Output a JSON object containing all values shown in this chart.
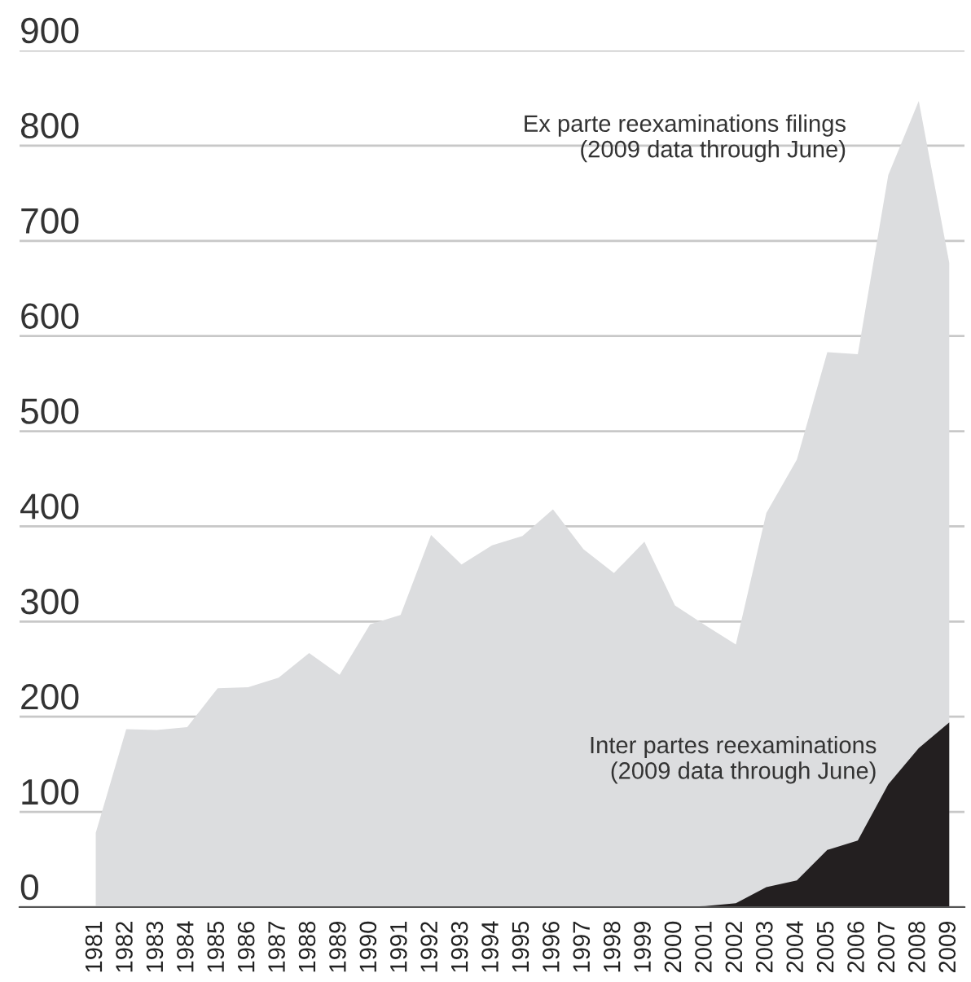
{
  "chart_data": {
    "type": "area",
    "categories": [
      "1981",
      "1982",
      "1983",
      "1984",
      "1985",
      "1986",
      "1987",
      "1988",
      "1989",
      "1990",
      "1991",
      "1992",
      "1993",
      "1994",
      "1995",
      "1996",
      "1997",
      "1998",
      "1999",
      "2000",
      "2001",
      "2002",
      "2003",
      "2004",
      "2005",
      "2006",
      "2007",
      "2008",
      "2009"
    ],
    "series": [
      {
        "name": "Ex parte reexaminations filings\n(2009 data through June)",
        "color": "#dcdddf",
        "values": [
          78,
          187,
          186,
          189,
          230,
          231,
          241,
          267,
          244,
          297,
          307,
          391,
          360,
          380,
          390,
          418,
          376,
          351,
          384,
          317,
          296,
          276,
          414,
          470,
          583,
          581,
          769,
          847,
          677
        ]
      },
      {
        "name": "Inter partes reexaminations\n(2009 data through June)",
        "color": "#231f20",
        "values": [
          null,
          null,
          null,
          null,
          null,
          null,
          null,
          null,
          null,
          null,
          null,
          null,
          null,
          null,
          null,
          null,
          null,
          null,
          null,
          0,
          1,
          4,
          21,
          28,
          60,
          70,
          129,
          167,
          194
        ]
      }
    ],
    "ylim": [
      0,
      900
    ],
    "yticks": [
      0,
      100,
      200,
      300,
      400,
      500,
      600,
      700,
      800,
      900
    ],
    "grid": "y",
    "legend": false
  }
}
